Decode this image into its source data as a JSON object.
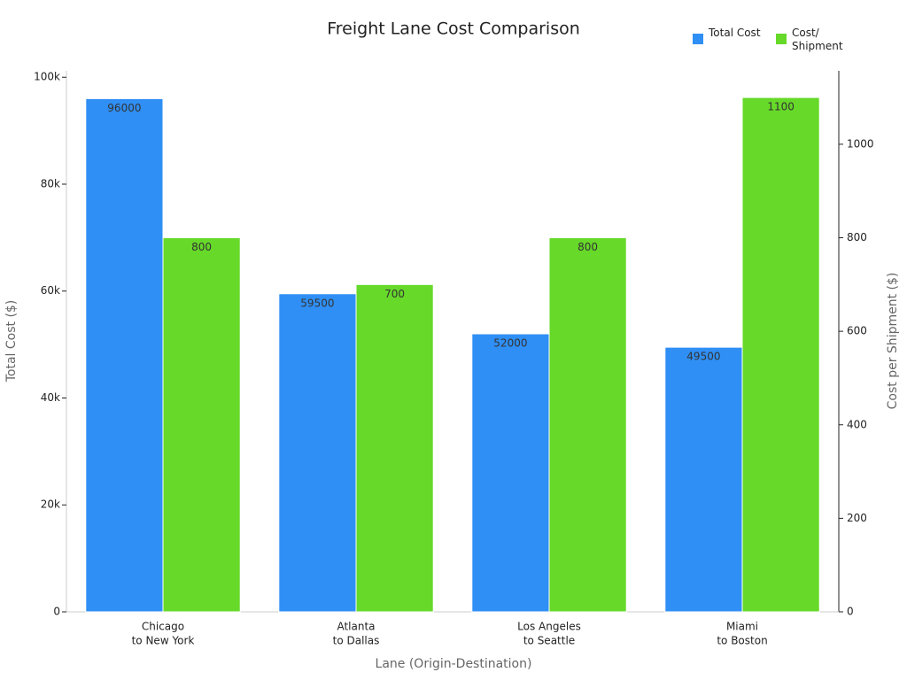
{
  "chart_data": {
    "type": "bar",
    "title": "Freight Lane Cost Comparison",
    "x_label": "Lane (Origin-Destination)",
    "y_label": "Total Cost ($)",
    "y2_label": "Cost per Shipment ($)",
    "categories": [
      [
        "Chicago",
        "to New York"
      ],
      [
        "Atlanta",
        "to Dallas"
      ],
      [
        "Los Angeles",
        "to Seattle"
      ],
      [
        "Miami",
        "to Boston"
      ]
    ],
    "series": [
      {
        "name": "Total Cost",
        "color": "#2f8ff5",
        "values": [
          96000,
          59500,
          52000,
          49500
        ]
      },
      {
        "name": "Cost/ Shipment",
        "color": "#66d929",
        "values": [
          800,
          700,
          800,
          1100
        ],
        "axis": "y2"
      }
    ],
    "ylim": [
      0,
      101200
    ],
    "yticks": [
      0,
      {
        "value": 20000,
        "label": "20k"
      },
      {
        "value": 40000,
        "label": "40k"
      },
      {
        "value": 60000,
        "label": "60k"
      },
      {
        "value": 80000,
        "label": "80k"
      },
      {
        "value": 100000,
        "label": "100k"
      }
    ],
    "y2lim": [
      0,
      1157
    ],
    "y2ticks": [
      0,
      200,
      400,
      600,
      800,
      1000
    ],
    "legend": "top-right"
  }
}
